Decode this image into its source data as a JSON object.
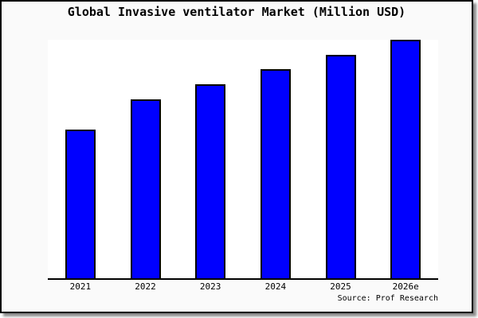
{
  "frame": {
    "background": "#fafafa",
    "border_color": "#000000",
    "shadow_color": "#8a8a8a"
  },
  "chart_data": {
    "type": "bar",
    "title": "Global Invasive ventilator Market (Million USD)",
    "categories": [
      "2021",
      "2022",
      "2023",
      "2024",
      "2025",
      "2026e"
    ],
    "values": [
      62.5,
      75.0,
      81.3,
      87.7,
      93.7,
      100
    ],
    "values_unit": "percent of tallest bar (y-axis shows no ticks, labels, or gridlines)",
    "xlabel": "",
    "ylabel": "",
    "grid": false,
    "legend": null,
    "bar_color": "#0000ff",
    "bar_border_color": "#000000",
    "plot_background": "#ffffff",
    "axis_line_color": "#000000",
    "source_note": "Source: Prof Research"
  }
}
